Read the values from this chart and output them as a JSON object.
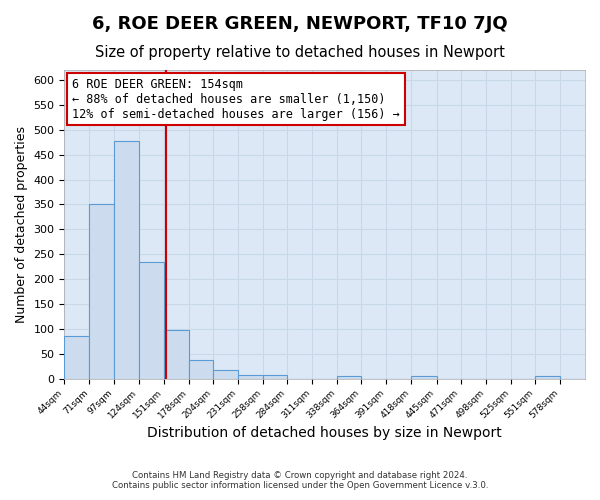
{
  "title": "6, ROE DEER GREEN, NEWPORT, TF10 7JQ",
  "subtitle": "Size of property relative to detached houses in Newport",
  "xlabel": "Distribution of detached houses by size in Newport",
  "ylabel": "Number of detached properties",
  "footer_lines": [
    "Contains HM Land Registry data © Crown copyright and database right 2024.",
    "Contains public sector information licensed under the Open Government Licence v.3.0."
  ],
  "bin_labels": [
    "44sqm",
    "71sqm",
    "97sqm",
    "124sqm",
    "151sqm",
    "178sqm",
    "204sqm",
    "231sqm",
    "258sqm",
    "284sqm",
    "311sqm",
    "338sqm",
    "364sqm",
    "391sqm",
    "418sqm",
    "445sqm",
    "471sqm",
    "498sqm",
    "525sqm",
    "551sqm",
    "578sqm"
  ],
  "bin_edges": [
    44,
    71,
    97,
    124,
    151,
    178,
    204,
    231,
    258,
    284,
    311,
    338,
    364,
    391,
    418,
    445,
    471,
    498,
    525,
    551,
    578,
    605
  ],
  "bar_heights": [
    85,
    350,
    478,
    235,
    97,
    38,
    18,
    7,
    7,
    0,
    0,
    5,
    0,
    0,
    5,
    0,
    0,
    0,
    0,
    5,
    0
  ],
  "bar_color": "#ccdcee",
  "bar_edge_color": "#5b9bd5",
  "vline_x": 154,
  "vline_color": "#cc0000",
  "annotation_text_line1": "6 ROE DEER GREEN: 154sqm",
  "annotation_text_line2": "← 88% of detached houses are smaller (1,150)",
  "annotation_text_line3": "12% of semi-detached houses are larger (156) →",
  "annotation_box_color": "#ffffff",
  "annotation_box_edge_color": "#cc0000",
  "ylim": [
    0,
    620
  ],
  "yticks": [
    0,
    50,
    100,
    150,
    200,
    250,
    300,
    350,
    400,
    450,
    500,
    550,
    600
  ],
  "figure_bg_color": "#ffffff",
  "plot_bg_color": "#dce8f5",
  "grid_color": "#c8d8e8",
  "title_fontsize": 13,
  "subtitle_fontsize": 10.5,
  "xlabel_fontsize": 10,
  "ylabel_fontsize": 9
}
